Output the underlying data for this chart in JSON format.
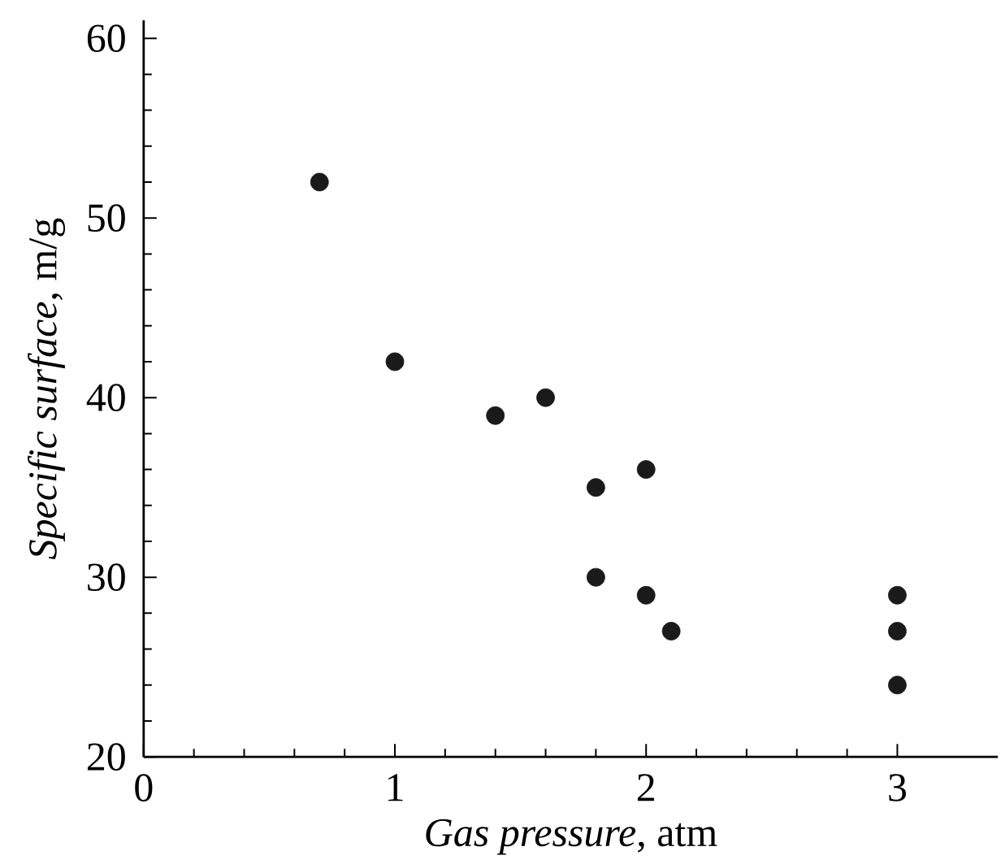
{
  "chart_data": {
    "type": "scatter",
    "xlabel": "*Gas pressure*, atm",
    "ylabel": "*Specific surface*, m/g",
    "x": [
      0.7,
      1.0,
      1.4,
      1.6,
      1.8,
      2.0,
      1.8,
      2.0,
      2.1,
      3.0,
      3.0,
      3.0
    ],
    "values": [
      52,
      42,
      39,
      40,
      35,
      36,
      30,
      29,
      27,
      29,
      27,
      24
    ],
    "color": "#1a1a1a",
    "marker": "circle",
    "xlim": [
      0,
      3.4
    ],
    "ylim": [
      20,
      61
    ],
    "xticks": [
      0,
      1,
      2,
      3
    ],
    "yticks": [
      20,
      30,
      40,
      50,
      60
    ],
    "grid": false
  }
}
